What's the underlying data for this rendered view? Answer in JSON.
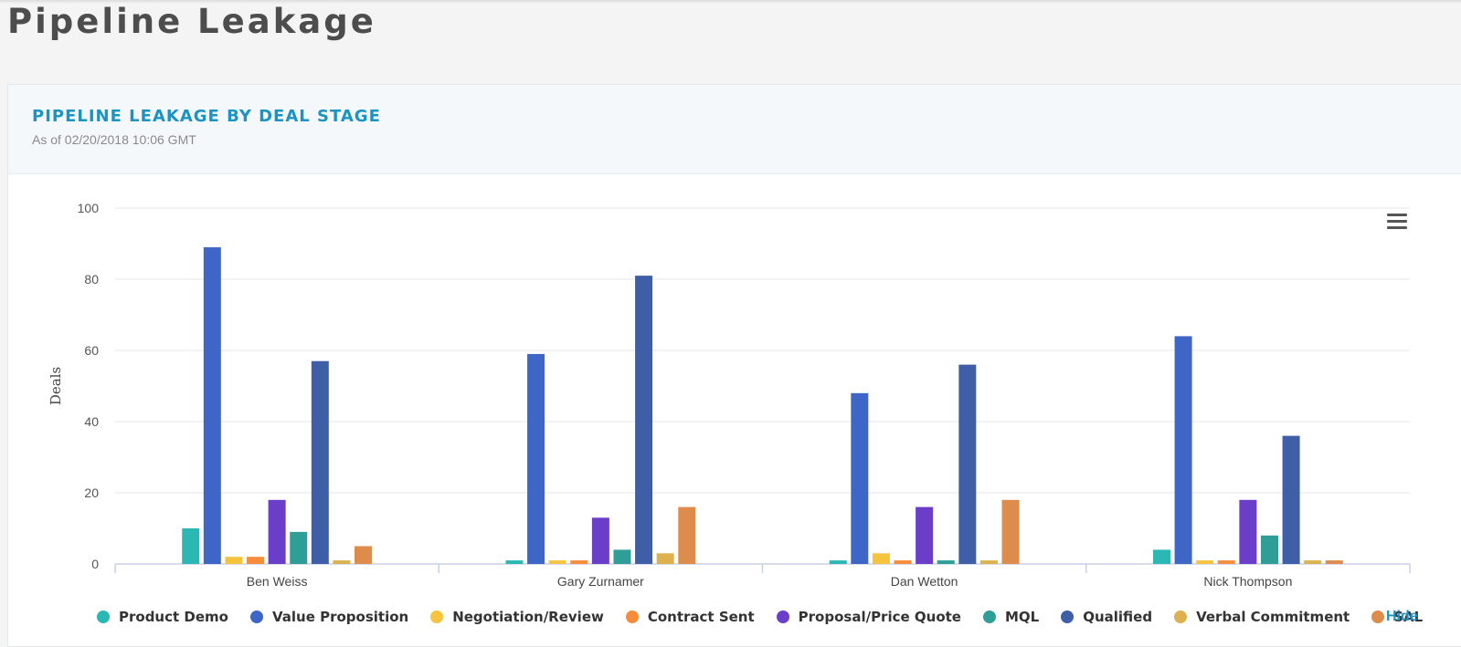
{
  "page": {
    "title": "Pipeline Leakage"
  },
  "card": {
    "title": "PIPELINE LEAKAGE BY DEAL STAGE",
    "subtitle": "As of 02/20/2018 10:06 GMT",
    "hide_label": "Hide",
    "menu_icon": "hamburger-menu-icon"
  },
  "chart_data": {
    "type": "bar",
    "title": "",
    "xlabel": "",
    "ylabel": "Deals",
    "ylim": [
      0,
      100
    ],
    "yticks": [
      0,
      20,
      40,
      60,
      80,
      100
    ],
    "grid": true,
    "legend_position": "bottom",
    "categories": [
      "Ben Weiss",
      "Gary Zurnamer",
      "Dan Wetton",
      "Nick Thompson"
    ],
    "series": [
      {
        "name": "Product Demo",
        "color": "#2bb7b3",
        "values": [
          10,
          1,
          1,
          4
        ]
      },
      {
        "name": "Value Proposition",
        "color": "#3e66c7",
        "values": [
          89,
          59,
          48,
          64
        ]
      },
      {
        "name": "Negotiation/Review",
        "color": "#f6c33d",
        "values": [
          2,
          1,
          3,
          1
        ]
      },
      {
        "name": "Contract Sent",
        "color": "#f78c3a",
        "values": [
          2,
          1,
          1,
          1
        ]
      },
      {
        "name": "Proposal/Price Quote",
        "color": "#6a3ec8",
        "values": [
          18,
          13,
          16,
          18
        ]
      },
      {
        "name": "MQL",
        "color": "#2e9e96",
        "values": [
          9,
          4,
          1,
          8
        ]
      },
      {
        "name": "Qualified",
        "color": "#3f5ea8",
        "values": [
          57,
          81,
          56,
          36
        ]
      },
      {
        "name": "Verbal Commitment",
        "color": "#ddb24e",
        "values": [
          1,
          3,
          1,
          1
        ]
      },
      {
        "name": "SAL",
        "color": "#de8c4c",
        "values": [
          5,
          16,
          18,
          1
        ]
      }
    ]
  }
}
